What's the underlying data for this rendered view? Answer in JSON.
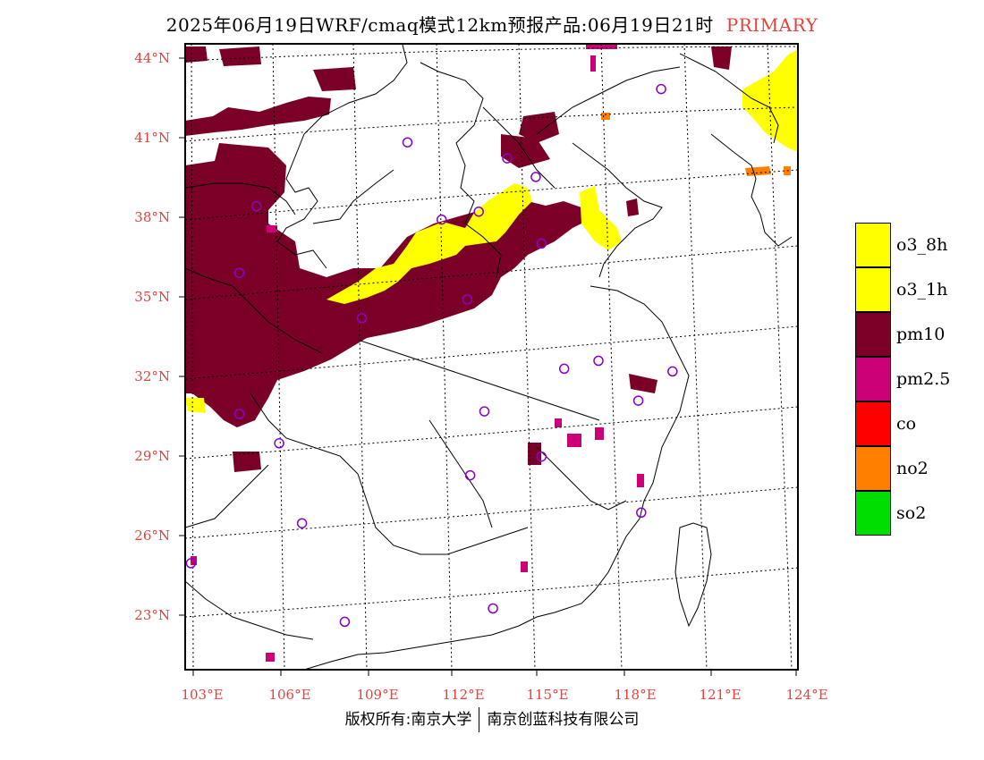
{
  "title": {
    "main": "2025年06月19日WRF/cmaq模式12km预报产品:06月19日21时",
    "highlight": "PRIMARY"
  },
  "colors": {
    "o3_8h": "#ffff00",
    "o3_1h": "#ffff00",
    "pm10": "#7a0028",
    "pm25": "#cc0077",
    "co": "#ff0000",
    "no2": "#ff8000",
    "so2": "#00dd00",
    "station": "#8800cc",
    "axis_label": "#e8403a"
  },
  "map": {
    "lon_range": [
      102.5,
      124
    ],
    "lat_range": [
      21,
      44.5
    ],
    "lat_ticks": [
      "44°N",
      "41°N",
      "38°N",
      "35°N",
      "32°N",
      "29°N",
      "26°N",
      "23°N"
    ],
    "lon_ticks": [
      "103°E",
      "106°E",
      "109°E",
      "112°E",
      "115°E",
      "118°E",
      "121°E",
      "124°E"
    ],
    "stations": [
      [
        119.2,
        42.8
      ],
      [
        110.3,
        40.8
      ],
      [
        113.8,
        40.2
      ],
      [
        114.8,
        39.5
      ],
      [
        105.0,
        38.4
      ],
      [
        111.5,
        37.9
      ],
      [
        112.8,
        38.2
      ],
      [
        115.0,
        37.0
      ],
      [
        104.4,
        35.9
      ],
      [
        112.4,
        34.9
      ],
      [
        108.7,
        34.2
      ],
      [
        117.0,
        32.6
      ],
      [
        115.8,
        32.3
      ],
      [
        119.6,
        32.2
      ],
      [
        118.4,
        31.1
      ],
      [
        104.4,
        30.6
      ],
      [
        113.0,
        30.7
      ],
      [
        105.8,
        29.5
      ],
      [
        115.0,
        29.0
      ],
      [
        112.5,
        28.3
      ],
      [
        118.5,
        26.9
      ],
      [
        106.6,
        26.5
      ],
      [
        102.7,
        25.0
      ],
      [
        108.1,
        22.8
      ],
      [
        113.3,
        23.3
      ]
    ]
  },
  "legend": [
    {
      "label": "o3_8h",
      "color": "#ffff00"
    },
    {
      "label": "o3_1h",
      "color": "#ffff00"
    },
    {
      "label": "pm10",
      "color": "#7a0028"
    },
    {
      "label": "pm2.5",
      "color": "#cc0077"
    },
    {
      "label": "co",
      "color": "#ff0000"
    },
    {
      "label": "no2",
      "color": "#ff8000"
    },
    {
      "label": "so2",
      "color": "#00dd00"
    }
  ],
  "footer": {
    "left": "版权所有:南京大学",
    "right": "南京创蓝科技有限公司"
  }
}
